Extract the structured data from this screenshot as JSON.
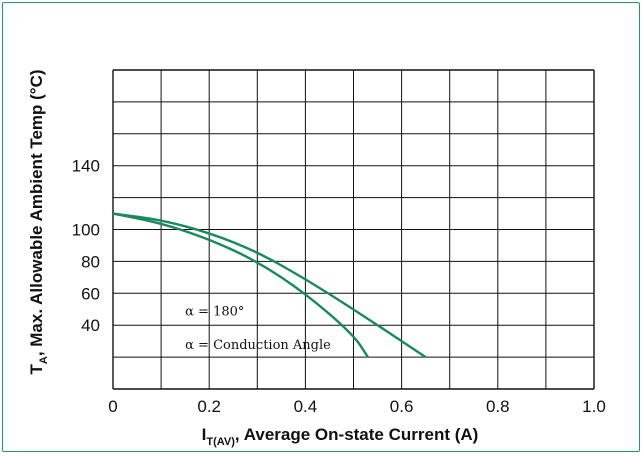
{
  "chart_data": {
    "type": "line",
    "xlabel": {
      "prefix": "I",
      "sub": "T(AV)",
      "suffix": ", Average On-state Current (A)"
    },
    "ylabel": {
      "prefix": "T",
      "sub": "A",
      "suffix": ", Max. Allowable Ambient Temp (°C)"
    },
    "xlim": [
      0,
      1.0
    ],
    "ylim": [
      0,
      200
    ],
    "x_ticks": [
      "0",
      "0.2",
      "0.4",
      "0.6",
      "0.8",
      "1.0"
    ],
    "y_ticks": [
      "40",
      "60",
      "80",
      "100",
      "140"
    ],
    "y_tick_values": [
      40,
      60,
      80,
      100,
      140
    ],
    "grid": true,
    "line_color": "#1a8a5a",
    "series": [
      {
        "x": [
          0,
          0.1,
          0.2,
          0.3,
          0.4,
          0.5,
          0.53
        ],
        "y": [
          110,
          104,
          94,
          80,
          60,
          34,
          20
        ]
      },
      {
        "x": [
          0,
          0.1,
          0.2,
          0.3,
          0.4,
          0.5,
          0.6,
          0.65
        ],
        "y": [
          110,
          106,
          98,
          86,
          69,
          50,
          30,
          20
        ]
      }
    ],
    "annotations": [
      {
        "text": "α = 180°",
        "x": 0.15,
        "y": 46
      },
      {
        "text": "α = Conduction Angle",
        "x": 0.15,
        "y": 25
      }
    ]
  }
}
